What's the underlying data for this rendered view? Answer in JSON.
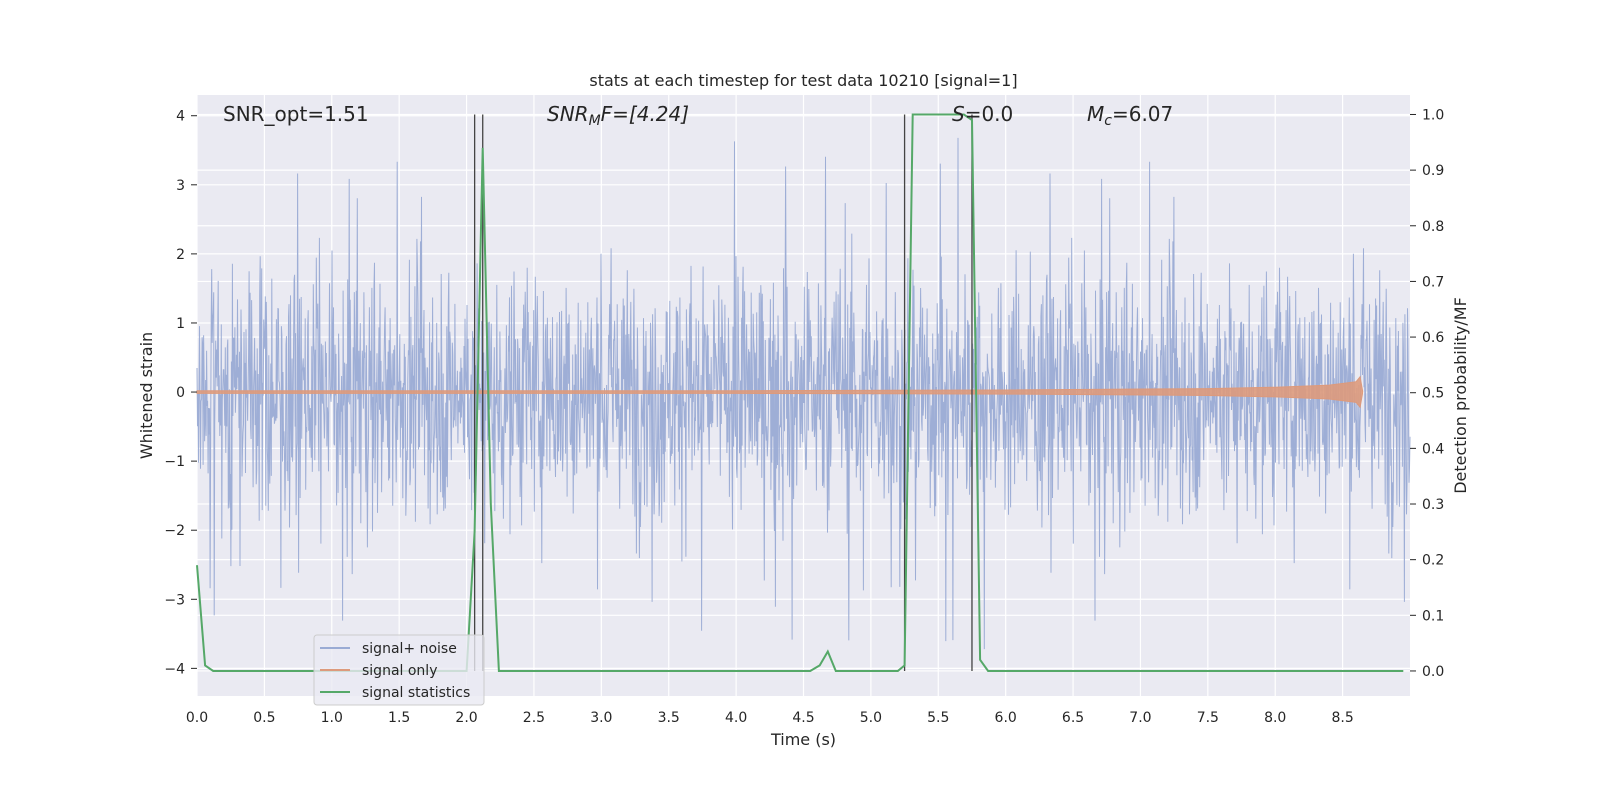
{
  "chart_data": {
    "type": "line",
    "title": "stats at each timestep for test data 10210 [signal=1]",
    "xlabel": "Time (s)",
    "ylabel_left": "Whitened strain",
    "ylabel_right": "Detection probability/MF",
    "xlim": [
      0.0,
      9.0
    ],
    "ylim_left": [
      -4.4,
      4.3
    ],
    "ylim_right": [
      -0.045,
      1.035
    ],
    "x_ticks": [
      "0.0",
      "0.5",
      "1.0",
      "1.5",
      "2.0",
      "2.5",
      "3.0",
      "3.5",
      "4.0",
      "4.5",
      "5.0",
      "5.5",
      "6.0",
      "6.5",
      "7.0",
      "7.5",
      "8.0",
      "8.5"
    ],
    "x_tick_values": [
      0.0,
      0.5,
      1.0,
      1.5,
      2.0,
      2.5,
      3.0,
      3.5,
      4.0,
      4.5,
      5.0,
      5.5,
      6.0,
      6.5,
      7.0,
      7.5,
      8.0,
      8.5
    ],
    "y_left_ticks": [
      "4",
      "3",
      "2",
      "1",
      "0",
      "−1",
      "−2",
      "−3",
      "−4"
    ],
    "y_left_tick_values": [
      4,
      3,
      2,
      1,
      0,
      -1,
      -2,
      -3,
      -4
    ],
    "y_right_ticks": [
      "1.0",
      "0.9",
      "0.8",
      "0.7",
      "0.6",
      "0.5",
      "0.4",
      "0.3",
      "0.2",
      "0.1",
      "0.0"
    ],
    "y_right_tick_values": [
      1.0,
      0.9,
      0.8,
      0.7,
      0.6,
      0.5,
      0.4,
      0.3,
      0.2,
      0.1,
      0.0
    ],
    "grid": true,
    "legend_position": "lower-left",
    "annotations": {
      "snr_opt": "SNR_opt=1.51",
      "snr_mf_base": "SNR",
      "snr_mf_sub": "M",
      "snr_mf_rest": "F=[4.24]",
      "s_italic": "S",
      "s_rest": "=0.0",
      "mc_base": "M",
      "mc_sub": "c",
      "mc_rest": "=6.07"
    },
    "vertical_lines_x": [
      2.06,
      2.12,
      5.25,
      5.75
    ],
    "series": [
      {
        "name": "signal+ noise",
        "color": "#9aabd4",
        "axis": "left",
        "noise_envelope": {
          "typical_abs": 1.5,
          "max": 3.9,
          "min": -3.9,
          "duration": 9.0
        }
      },
      {
        "name": "signal only",
        "color": "#dd9a7c",
        "axis": "left",
        "chirp_envelope": {
          "x": [
            0.0,
            4.0,
            6.0,
            7.5,
            8.0,
            8.4,
            8.6,
            8.63,
            8.65
          ],
          "amp": [
            0.02,
            0.02,
            0.03,
            0.05,
            0.07,
            0.1,
            0.15,
            0.22,
            0.0
          ]
        }
      },
      {
        "name": "signal statistics",
        "color": "#55a868",
        "axis": "right",
        "x": [
          0.0,
          0.06,
          0.12,
          1.8,
          2.0,
          2.06,
          2.12,
          2.18,
          2.24,
          4.55,
          4.62,
          4.68,
          4.74,
          5.2,
          5.25,
          5.31,
          5.5,
          5.69,
          5.75,
          5.81,
          5.87,
          8.95
        ],
        "y": [
          0.19,
          0.01,
          0.0,
          0.0,
          0.0,
          0.25,
          0.94,
          0.3,
          0.0,
          0.0,
          0.01,
          0.035,
          0.0,
          0.0,
          0.01,
          1.0,
          1.0,
          1.0,
          0.99,
          0.02,
          0.0,
          0.0
        ]
      }
    ]
  }
}
